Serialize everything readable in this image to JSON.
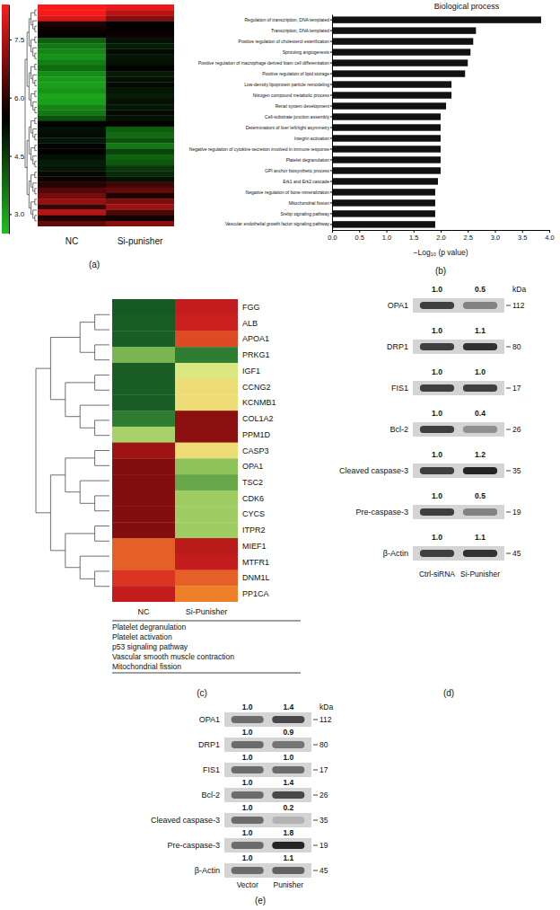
{
  "chart_data": [
    {
      "type": "heatmap",
      "panel_label": "(a)",
      "categories": [
        "NC",
        "Si-punisher"
      ],
      "values": [
        [
          8.4,
          8.2
        ],
        [
          8.3,
          7.6
        ],
        [
          8.0,
          7.0
        ],
        [
          5.8,
          5.4
        ],
        [
          5.6,
          5.5
        ],
        [
          5.5,
          5.6
        ],
        [
          4.0,
          5.2
        ],
        [
          3.6,
          5.0
        ],
        [
          3.4,
          5.3
        ],
        [
          3.2,
          5.1
        ],
        [
          3.5,
          5.2
        ],
        [
          3.8,
          5.4
        ],
        [
          3.3,
          5.0
        ],
        [
          3.1,
          5.2
        ],
        [
          3.0,
          5.3
        ],
        [
          3.2,
          5.1
        ],
        [
          2.9,
          5.0
        ],
        [
          3.0,
          5.2
        ],
        [
          3.4,
          5.1
        ],
        [
          3.6,
          5.3
        ],
        [
          4.2,
          5.2
        ],
        [
          5.4,
          5.5
        ],
        [
          5.2,
          4.0
        ],
        [
          5.3,
          3.8
        ],
        [
          5.1,
          4.2
        ],
        [
          5.4,
          3.6
        ],
        [
          5.5,
          4.4
        ],
        [
          5.2,
          3.9
        ],
        [
          5.0,
          4.1
        ],
        [
          5.1,
          4.6
        ],
        [
          5.3,
          4.8
        ],
        [
          5.6,
          5.2
        ],
        [
          5.9,
          6.2
        ],
        [
          6.4,
          6.6
        ],
        [
          6.8,
          5.8
        ],
        [
          7.2,
          6.9
        ],
        [
          6.1,
          7.3
        ],
        [
          7.6,
          6.3
        ],
        [
          5.8,
          5.6
        ],
        [
          6.6,
          7.0
        ]
      ],
      "color_range": [
        2.5,
        8.4
      ],
      "color_ticks": [
        {
          "value": 3,
          "label": "3.0"
        },
        4.5,
        {
          "value": 6,
          "label": "6.0"
        },
        7.5
      ]
    },
    {
      "type": "bar",
      "orientation": "horizontal",
      "panel_label": "(b)",
      "title": "Biological process",
      "x_label": "−Log₁₀ (p value)",
      "categories": [
        "Regulation of transcription, DNA templated",
        "Transcription, DNA templated",
        "Positive regulation of cholesterol esterification",
        "Sprouting angiogenesis",
        "Positive regulation of macrophage derived foam cell differentiation",
        "Positive regulation of lipid storage",
        "Low-density lipoprotein particle remodeling",
        "Nitrogen compound metabolic process",
        "Renal system development",
        "Cell-substrate junction assembly",
        "Determinationi of liver left/right asymmetry",
        "Integrin activation",
        "Negative regulation of cytokine secretion involved in immune response",
        "Platelet degranulation",
        "GPI anchor biosynthetic process",
        "Erk1 and Erk2 cascade",
        "Negative regulation of bone mineralization",
        "Mitochondrial fission",
        "Srebp signaling pathway",
        "Vascular endothelial growth factor signaling pathway"
      ],
      "values": [
        3.85,
        2.65,
        2.6,
        2.55,
        2.5,
        2.45,
        2.2,
        2.2,
        2.1,
        2.0,
        2.0,
        2.0,
        2.0,
        2.0,
        2.0,
        1.95,
        1.9,
        1.9,
        1.9,
        1.9
      ],
      "color": "#111111",
      "xlim": [
        0,
        4
      ],
      "xticks": [
        {
          "value": 0,
          "label": "0.0"
        },
        0.5,
        {
          "value": 1,
          "label": "1.0"
        },
        1.5,
        {
          "value": 2,
          "label": "2.0"
        },
        2.5,
        {
          "value": 3,
          "label": "3.0"
        },
        3.5,
        {
          "value": 4,
          "label": "4.0"
        }
      ]
    },
    {
      "type": "heatmap",
      "panel_label": "(c)",
      "categories": [
        "NC",
        "Si-Punisher"
      ],
      "rows": [
        "FGG",
        "ALB",
        "APOA1",
        "PRKG1",
        "IGF1",
        "CCNG2",
        "KCNMB1",
        "COL1A2",
        "PPM1D",
        "CASP3",
        "OPA1",
        "TSC2",
        "CDK6",
        "CYCS",
        "ITPR2",
        "MIEF1",
        "MTFR1",
        "DNM1L",
        "PP1CA"
      ],
      "values": [
        [
          0.3,
          5.2
        ],
        [
          0.4,
          5.1
        ],
        [
          0.4,
          4.6
        ],
        [
          1.8,
          1.0
        ],
        [
          0.4,
          2.8
        ],
        [
          0.4,
          3.2
        ],
        [
          0.4,
          3.2
        ],
        [
          1.0,
          5.8
        ],
        [
          2.3,
          5.8
        ],
        [
          5.6,
          3.2
        ],
        [
          5.9,
          2.0
        ],
        [
          5.9,
          1.6
        ],
        [
          5.9,
          2.2
        ],
        [
          5.9,
          2.2
        ],
        [
          5.9,
          2.2
        ],
        [
          4.4,
          5.3
        ],
        [
          4.4,
          5.2
        ],
        [
          4.8,
          4.4
        ],
        [
          5.2,
          4.1
        ]
      ],
      "color_range": [
        0,
        6
      ],
      "annotations": [
        "Platelet degranulation",
        "Platelet activation",
        "p53 signaling pathway",
        "Vascular smooth muscle contraction",
        "Mitochondrial fission"
      ]
    },
    {
      "type": "blot",
      "panel_label": "(d)",
      "unit": "kDa",
      "categories": [
        "Ctrl-siRNA",
        "Si-Punisher"
      ],
      "rows": [
        {
          "name": "OPA1",
          "kda": 112,
          "values": [
            1,
            0.5
          ],
          "value_labels": [
            "1.0",
            "0.5"
          ]
        },
        {
          "name": "DRP1",
          "kda": 80,
          "values": [
            1,
            1.1
          ],
          "value_labels": [
            "1.0",
            "1.1"
          ]
        },
        {
          "name": "FIS1",
          "kda": 17,
          "values": [
            1,
            1
          ],
          "value_labels": [
            "1.0",
            "1.0"
          ]
        },
        {
          "name": "Bcl-2",
          "kda": 26,
          "values": [
            1,
            0.4
          ],
          "value_labels": [
            "1.0",
            "0.4"
          ]
        },
        {
          "name": "Cleaved caspase-3",
          "kda": 35,
          "values": [
            1,
            1.2
          ],
          "value_labels": [
            "1.0",
            "1.2"
          ]
        },
        {
          "name": "Pre-caspase-3",
          "kda": 19,
          "values": [
            1,
            0.5
          ],
          "value_labels": [
            "1.0",
            "0.5"
          ]
        },
        {
          "name": "β-Actin",
          "kda": 45,
          "values": [
            1,
            1.1
          ],
          "value_labels": [
            "1.0",
            "1.1"
          ]
        }
      ]
    },
    {
      "type": "blot",
      "panel_label": "(e)",
      "unit": "kDa",
      "categories": [
        "Vector",
        "Punisher"
      ],
      "rows": [
        {
          "name": "OPA1",
          "kda": 112,
          "values": [
            1,
            1.4
          ],
          "value_labels": [
            "1.0",
            "1.4"
          ]
        },
        {
          "name": "DRP1",
          "kda": 80,
          "values": [
            1,
            0.9
          ],
          "value_labels": [
            "1.0",
            "0.9"
          ]
        },
        {
          "name": "FIS1",
          "kda": 17,
          "values": [
            1,
            1
          ],
          "value_labels": [
            "1.0",
            "1.0"
          ]
        },
        {
          "name": "Bcl-2",
          "kda": 26,
          "values": [
            1,
            1.4
          ],
          "value_labels": [
            "1.0",
            "1.4"
          ]
        },
        {
          "name": "Cleaved caspase-3",
          "kda": 35,
          "values": [
            1,
            0.2
          ],
          "value_labels": [
            "1.0",
            "0.2"
          ]
        },
        {
          "name": "Pre-caspase-3",
          "kda": 19,
          "values": [
            1,
            1.8
          ],
          "value_labels": [
            "1.0",
            "1.8"
          ]
        },
        {
          "name": "β-Actin",
          "kda": 45,
          "values": [
            1,
            1.1
          ],
          "value_labels": [
            "1.0",
            "1.1"
          ]
        }
      ]
    }
  ]
}
